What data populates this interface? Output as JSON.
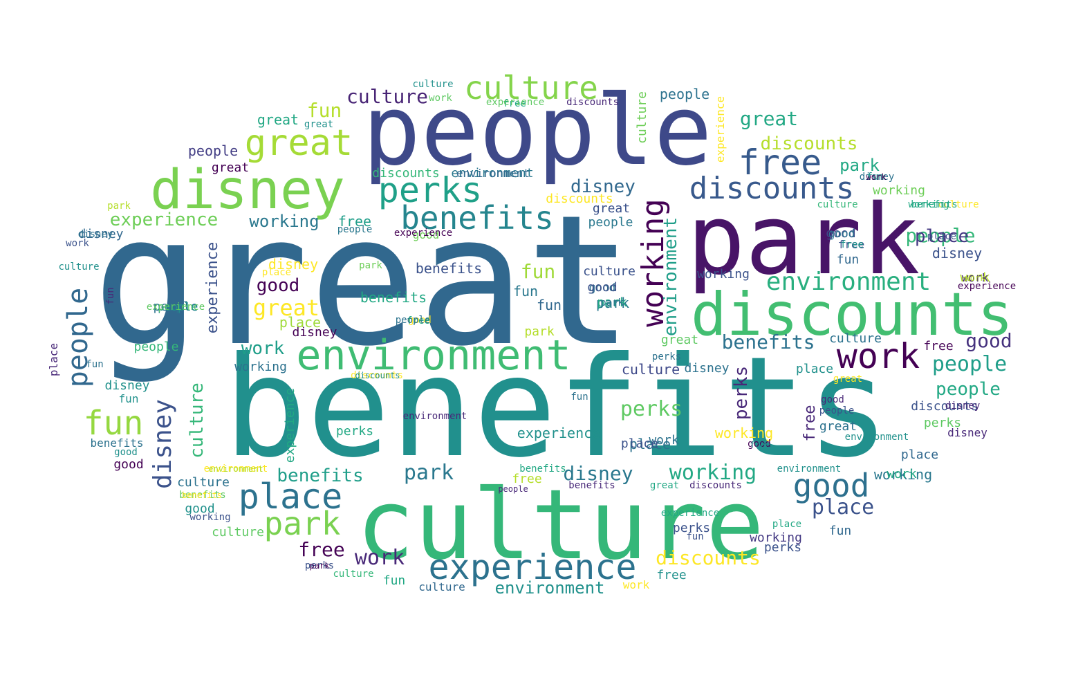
{
  "word_cloud": {
    "colors": {
      "c1": "#440154",
      "c2": "#482878",
      "c3": "#3e4989",
      "c4": "#31688e",
      "c5": "#26828e",
      "c6": "#1f9e89",
      "c7": "#35b779",
      "c8": "#6ece58",
      "c9": "#b5de2b",
      "c10": "#fde725"
    },
    "words": [
      {
        "text": "great",
        "color": "#31688e"
      },
      {
        "text": "benefits",
        "color": "#21908d"
      },
      {
        "text": "people",
        "color": "#3e4989"
      },
      {
        "text": "park",
        "color": "#481467"
      },
      {
        "text": "culture",
        "color": "#35b779"
      },
      {
        "text": "discounts",
        "color": "#42be71"
      },
      {
        "text": "disney",
        "color": "#7ad151"
      },
      {
        "text": "environment",
        "color": "#3fbc73"
      },
      {
        "text": "perks",
        "color": "#1fa088"
      },
      {
        "text": "benefits",
        "color": "#25858e"
      },
      {
        "text": "working",
        "color": "#440154"
      },
      {
        "text": "culture",
        "color": "#84d44b"
      },
      {
        "text": "great",
        "color": "#a5db36"
      },
      {
        "text": "free",
        "color": "#375a8c"
      },
      {
        "text": "discounts",
        "color": "#38598c"
      },
      {
        "text": "work",
        "color": "#440154"
      },
      {
        "text": "experience",
        "color": "#2c728e"
      },
      {
        "text": "place",
        "color": "#2c728e"
      },
      {
        "text": "park",
        "color": "#7ad151"
      },
      {
        "text": "good",
        "color": "#2d708e"
      },
      {
        "text": "environment",
        "color": "#1f9e89"
      },
      {
        "text": "environment",
        "color": "#29af7f"
      },
      {
        "text": "people",
        "color": "#31688e"
      },
      {
        "text": "fun",
        "color": "#95d840"
      },
      {
        "text": "disney",
        "color": "#3b528b"
      },
      {
        "text": "culture",
        "color": "#482475"
      },
      {
        "text": "fun",
        "color": "#b5de2b"
      },
      {
        "text": "experience",
        "color": "#6ece58"
      },
      {
        "text": "culture",
        "color": "#35b779"
      },
      {
        "text": "benefits",
        "color": "#2c728e"
      },
      {
        "text": "place",
        "color": "#3b528b"
      },
      {
        "text": "working",
        "color": "#22a884"
      },
      {
        "text": "great",
        "color": "#22a884"
      },
      {
        "text": "discounts",
        "color": "#b5de2b"
      },
      {
        "text": "benefits",
        "color": "#3b528b"
      },
      {
        "text": "discounts",
        "color": "#fde725"
      },
      {
        "text": "people",
        "color": "#35b779"
      },
      {
        "text": "people",
        "color": "#1f9e89"
      },
      {
        "text": "good",
        "color": "#46327e"
      },
      {
        "text": "disney",
        "color": "#2a788e"
      },
      {
        "text": "park",
        "color": "#2a788e"
      },
      {
        "text": "park",
        "color": "#22a884"
      },
      {
        "text": "perks",
        "color": "#5ec962"
      },
      {
        "text": "working",
        "color": "#2a788e"
      },
      {
        "text": "disney",
        "color": "#440154"
      },
      {
        "text": "place",
        "color": "#443983"
      },
      {
        "text": "free",
        "color": "#1f9e89"
      },
      {
        "text": "working",
        "color": "#2a788e"
      },
      {
        "text": "work",
        "color": "#1f9e89"
      },
      {
        "text": "people",
        "color": "#22a884"
      },
      {
        "text": "great",
        "color": "#fde725"
      },
      {
        "text": "fun",
        "color": "#a0da39"
      },
      {
        "text": "perks",
        "color": "#482878"
      },
      {
        "text": "benefits",
        "color": "#1f9e89"
      },
      {
        "text": "work",
        "color": "#482878"
      },
      {
        "text": "disney",
        "color": "#31688e"
      },
      {
        "text": "experience",
        "color": "#3b528b"
      },
      {
        "text": "environment",
        "color": "#21918c"
      },
      {
        "text": "place",
        "color": "#2c728e"
      },
      {
        "text": "good",
        "color": "#440154"
      },
      {
        "text": "great",
        "color": "#22a884"
      },
      {
        "text": "fun",
        "color": "#2a788e"
      },
      {
        "text": "free",
        "color": "#440154"
      },
      {
        "text": "disney",
        "color": "#3b528b"
      },
      {
        "text": "people",
        "color": "#433e85"
      },
      {
        "text": "good",
        "color": "#3e4989"
      },
      {
        "text": "park",
        "color": "#2a788e"
      },
      {
        "text": "experience",
        "color": "#21918c"
      },
      {
        "text": "culture",
        "color": "#3e4989"
      },
      {
        "text": "people",
        "color": "#2c728e"
      },
      {
        "text": "fun",
        "color": "#31688e"
      },
      {
        "text": "working",
        "color": "#3b528b"
      },
      {
        "text": "disney",
        "color": "#31688e"
      },
      {
        "text": "working",
        "color": "#fde725"
      },
      {
        "text": "disney",
        "color": "#fde725"
      },
      {
        "text": "place",
        "color": "#9fda3a"
      },
      {
        "text": "culture",
        "color": "#2c728e"
      },
      {
        "text": "benefits",
        "color": "#22a884"
      },
      {
        "text": "free",
        "color": "#b5de2b"
      },
      {
        "text": "discounts",
        "color": "#35b779"
      },
      {
        "text": "work",
        "color": "#2c728e"
      },
      {
        "text": "culture",
        "color": "#3b528b"
      },
      {
        "text": "culture",
        "color": "#5ec962"
      },
      {
        "text": "great",
        "color": "#5ec962"
      },
      {
        "text": "disney",
        "color": "#2c728e"
      },
      {
        "text": "environment",
        "color": "#2a788e"
      },
      {
        "text": "great",
        "color": "#3b528b"
      },
      {
        "text": "working",
        "color": "#6ece58"
      },
      {
        "text": "experience",
        "color": "#22a884"
      },
      {
        "text": "work",
        "color": "#b5de2b"
      },
      {
        "text": "park",
        "color": "#b5de2b"
      },
      {
        "text": "place",
        "color": "#21918c"
      },
      {
        "text": "free",
        "color": "#3b528b"
      },
      {
        "text": "perks",
        "color": "#22a884"
      },
      {
        "text": "good",
        "color": "#2c728e"
      },
      {
        "text": "experience",
        "color": "#440154"
      },
      {
        "text": "people",
        "color": "#2c728e"
      },
      {
        "text": "fun",
        "color": "#21918c"
      },
      {
        "text": "place",
        "color": "#31688e"
      },
      {
        "text": "free",
        "color": "#440154"
      },
      {
        "text": "good",
        "color": "#6ece58"
      },
      {
        "text": "fun",
        "color": "#31688e"
      },
      {
        "text": "disney",
        "color": "#21918c"
      },
      {
        "text": "free",
        "color": "#21918c"
      },
      {
        "text": "discounts",
        "color": "#fde725"
      },
      {
        "text": "good",
        "color": "#21918c"
      },
      {
        "text": "culture",
        "color": "#fde725"
      },
      {
        "text": "perks",
        "color": "#5ec962"
      },
      {
        "text": "culture",
        "color": "#35b779"
      },
      {
        "text": "experience",
        "color": "#fde725"
      },
      {
        "text": "discounts",
        "color": "#482878"
      },
      {
        "text": "fun",
        "color": "#31688e"
      },
      {
        "text": "environment",
        "color": "#31688e"
      },
      {
        "text": "culture",
        "color": "#2c728e"
      },
      {
        "text": "place",
        "color": "#3b528b"
      },
      {
        "text": "good",
        "color": "#2c728e"
      },
      {
        "text": "park",
        "color": "#22a884"
      },
      {
        "text": "good",
        "color": "#440154"
      },
      {
        "text": "culture",
        "color": "#35b779"
      },
      {
        "text": "work",
        "color": "#fde725"
      },
      {
        "text": "benefits",
        "color": "#2c728e"
      },
      {
        "text": "culture",
        "color": "#31688e"
      },
      {
        "text": "free",
        "color": "#482878"
      },
      {
        "text": "working",
        "color": "#443983"
      },
      {
        "text": "people",
        "color": "#21918c"
      },
      {
        "text": "free",
        "color": "#21918c"
      },
      {
        "text": "environment",
        "color": "#fde725"
      },
      {
        "text": "perks",
        "color": "#3b528b"
      },
      {
        "text": "work",
        "color": "#482878"
      },
      {
        "text": "good",
        "color": "#3b528b"
      },
      {
        "text": "great",
        "color": "#2c728e"
      },
      {
        "text": "benefits",
        "color": "#5ec962"
      },
      {
        "text": "benefits",
        "color": "#482878"
      },
      {
        "text": "discounts",
        "color": "#3b528b"
      },
      {
        "text": "working",
        "color": "#2c728e"
      },
      {
        "text": "people",
        "color": "#2a788e"
      },
      {
        "text": "perks",
        "color": "#3b528b"
      },
      {
        "text": "fun",
        "color": "#22a884"
      },
      {
        "text": "experience",
        "color": "#5ec962"
      },
      {
        "text": "park",
        "color": "#b5de2b"
      },
      {
        "text": "park",
        "color": "#2c728e"
      },
      {
        "text": "environment",
        "color": "#b5de2b"
      },
      {
        "text": "place",
        "color": "#3b528b"
      },
      {
        "text": "work",
        "color": "#b5de2b"
      },
      {
        "text": "great",
        "color": "#21918c"
      },
      {
        "text": "disney",
        "color": "#2c728e"
      },
      {
        "text": "benefits",
        "color": "#fde725"
      },
      {
        "text": "disney",
        "color": "#2c728e"
      },
      {
        "text": "place",
        "color": "#fde725"
      },
      {
        "text": "great",
        "color": "#fde725"
      },
      {
        "text": "people",
        "color": "#35b779"
      },
      {
        "text": "fun",
        "color": "#21918c"
      },
      {
        "text": "good",
        "color": "#fde725"
      },
      {
        "text": "park",
        "color": "#6ece58"
      },
      {
        "text": "people",
        "color": "#482878"
      },
      {
        "text": "work",
        "color": "#5ec962"
      },
      {
        "text": "discounts",
        "color": "#482878"
      },
      {
        "text": "environment",
        "color": "#21918c"
      },
      {
        "text": "free",
        "color": "#22a884"
      },
      {
        "text": "great",
        "color": "#22a884"
      },
      {
        "text": "discounts",
        "color": "#fde725"
      },
      {
        "text": "culture",
        "color": "#21918c"
      },
      {
        "text": "working",
        "color": "#22a884"
      },
      {
        "text": "fun",
        "color": "#2c728e"
      },
      {
        "text": "free",
        "color": "#22a884"
      },
      {
        "text": "environment",
        "color": "#482878"
      },
      {
        "text": "experience",
        "color": "#5ec962"
      },
      {
        "text": "culture",
        "color": "#6ece58"
      },
      {
        "text": "benefits",
        "color": "#22a884"
      },
      {
        "text": "great",
        "color": "#440154"
      },
      {
        "text": "discounts",
        "color": "#21918c"
      },
      {
        "text": "disney",
        "color": "#482878"
      },
      {
        "text": "environment",
        "color": "#21918c"
      },
      {
        "text": "people",
        "color": "#2a788e"
      },
      {
        "text": "people",
        "color": "#3b528b"
      },
      {
        "text": "fun",
        "color": "#3b528b"
      },
      {
        "text": "work",
        "color": "#3b528b"
      },
      {
        "text": "perks",
        "color": "#3b528b"
      },
      {
        "text": "culture",
        "color": "#21918c"
      },
      {
        "text": "good",
        "color": "#482878"
      },
      {
        "text": "fun",
        "color": "#2c728e"
      },
      {
        "text": "work",
        "color": "#440154"
      },
      {
        "text": "park",
        "color": "#440154"
      },
      {
        "text": "disney",
        "color": "#482878"
      },
      {
        "text": "experience",
        "color": "#22a884"
      },
      {
        "text": "place",
        "color": "#482878"
      },
      {
        "text": "good",
        "color": "#440154"
      },
      {
        "text": "perks",
        "color": "#2c728e"
      },
      {
        "text": "working",
        "color": "#3b528b"
      },
      {
        "text": "work",
        "color": "#22a884"
      },
      {
        "text": "place",
        "color": "#22a884"
      },
      {
        "text": "free",
        "color": "#21918c"
      },
      {
        "text": "benefits",
        "color": "#22a884"
      },
      {
        "text": "good",
        "color": "#21918c"
      },
      {
        "text": "experience",
        "color": "#440154"
      },
      {
        "text": "fun",
        "color": "#482878"
      },
      {
        "text": "people",
        "color": "#2c728e"
      }
    ]
  }
}
